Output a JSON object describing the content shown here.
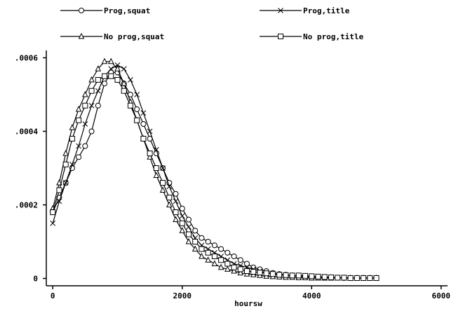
{
  "chart_data": {
    "type": "line",
    "xlabel": "hoursw",
    "ylabel": "",
    "title": "",
    "xlim": [
      -100,
      6100
    ],
    "ylim": [
      -2e-05,
      0.00062
    ],
    "xticks": [
      0,
      2000,
      4000,
      6000
    ],
    "xtick_labels": [
      "0",
      "2000",
      "4000",
      "6000"
    ],
    "yticks": [
      0,
      0.0002,
      0.0004,
      0.0006
    ],
    "ytick_labels": [
      "0",
      ".0002",
      ".0004",
      ".0006"
    ],
    "grid": false,
    "legend_position": "top",
    "series": [
      {
        "name": "Prog,squat",
        "marker": "circle",
        "x": [
          0,
          100,
          200,
          300,
          400,
          500,
          600,
          700,
          800,
          900,
          1000,
          1100,
          1200,
          1300,
          1400,
          1500,
          1600,
          1700,
          1800,
          1900,
          2000,
          2100,
          2200,
          2300,
          2400,
          2500,
          2600,
          2700,
          2800,
          2900,
          3000,
          3100,
          3200,
          3300,
          3400,
          3500,
          3600,
          3700,
          3800,
          3900,
          4000,
          4100,
          4200,
          4300,
          4400,
          4500,
          4600,
          4700,
          4800,
          4900,
          5000
        ],
        "y": [
          0.00018,
          0.00022,
          0.00026,
          0.0003,
          0.00033,
          0.00036,
          0.0004,
          0.00047,
          0.00053,
          0.00056,
          0.00056,
          0.00053,
          0.0005,
          0.00046,
          0.00042,
          0.00038,
          0.00034,
          0.0003,
          0.00026,
          0.00023,
          0.00019,
          0.00016,
          0.00013,
          0.00011,
          0.0001,
          9e-05,
          8e-05,
          7e-05,
          6e-05,
          5e-05,
          4e-05,
          3e-05,
          2.5e-05,
          2e-05,
          1.5e-05,
          1.2e-05,
          1e-05,
          8e-06,
          6e-06,
          5e-06,
          4e-06,
          3e-06,
          3e-06,
          2e-06,
          2e-06,
          1e-06,
          1e-06,
          1e-06,
          1e-06,
          1e-06,
          1e-06
        ]
      },
      {
        "name": "Prog,title",
        "marker": "x",
        "x": [
          0,
          100,
          200,
          300,
          400,
          500,
          600,
          700,
          800,
          900,
          1000,
          1100,
          1200,
          1300,
          1400,
          1500,
          1600,
          1700,
          1800,
          1900,
          2000,
          2100,
          2200,
          2300,
          2400,
          2500,
          2600,
          2700,
          2800,
          2900,
          3000,
          3100,
          3200,
          3300,
          3400,
          3500,
          3600,
          3700,
          3800,
          3900,
          4000,
          4100,
          4200,
          4300,
          4400,
          4500,
          4600,
          4700,
          4800,
          4900,
          5000
        ],
        "y": [
          0.00015,
          0.00021,
          0.00026,
          0.00031,
          0.00036,
          0.00042,
          0.00047,
          0.00051,
          0.00055,
          0.00057,
          0.00058,
          0.00057,
          0.00054,
          0.0005,
          0.00045,
          0.0004,
          0.00035,
          0.0003,
          0.00025,
          0.00021,
          0.00017,
          0.00014,
          0.00011,
          9e-05,
          8e-05,
          7e-05,
          6e-05,
          5e-05,
          4e-05,
          3.5e-05,
          3e-05,
          2.5e-05,
          2e-05,
          1.5e-05,
          1.2e-05,
          1e-05,
          8e-06,
          7e-06,
          6e-06,
          5e-06,
          4e-06,
          3e-06,
          3e-06,
          2e-06,
          2e-06,
          1e-06,
          1e-06,
          1e-06,
          1e-06,
          1e-06,
          1e-06
        ]
      },
      {
        "name": "No prog,squat",
        "marker": "triangle",
        "x": [
          0,
          100,
          200,
          300,
          400,
          500,
          600,
          700,
          800,
          900,
          1000,
          1100,
          1200,
          1300,
          1400,
          1500,
          1600,
          1700,
          1800,
          1900,
          2000,
          2100,
          2200,
          2300,
          2400,
          2500,
          2600,
          2700,
          2800,
          2900,
          3000,
          3100,
          3200,
          3300,
          3400,
          3500,
          3600,
          3700,
          3800,
          3900,
          4000,
          4100,
          4200,
          4300,
          4400,
          4500,
          4600,
          4700,
          4800,
          4900,
          5000
        ],
        "y": [
          0.00019,
          0.00026,
          0.00034,
          0.00041,
          0.00046,
          0.0005,
          0.00054,
          0.00057,
          0.00059,
          0.00059,
          0.00057,
          0.00053,
          0.00048,
          0.00043,
          0.00038,
          0.00033,
          0.00028,
          0.00024,
          0.0002,
          0.00016,
          0.00013,
          0.0001,
          8e-05,
          6e-05,
          5e-05,
          4e-05,
          3e-05,
          2.5e-05,
          2e-05,
          1.5e-05,
          1.2e-05,
          1e-05,
          8e-06,
          6e-06,
          5e-06,
          4e-06,
          3e-06,
          3e-06,
          2e-06,
          2e-06,
          1e-06,
          1e-06,
          1e-06,
          1e-06,
          1e-06,
          1e-06,
          1e-06,
          1e-06,
          1e-06,
          1e-06,
          1e-06
        ]
      },
      {
        "name": "No prog,title",
        "marker": "square",
        "x": [
          0,
          100,
          200,
          300,
          400,
          500,
          600,
          700,
          800,
          900,
          1000,
          1100,
          1200,
          1300,
          1400,
          1500,
          1600,
          1700,
          1800,
          1900,
          2000,
          2100,
          2200,
          2300,
          2400,
          2500,
          2600,
          2700,
          2800,
          2900,
          3000,
          3100,
          3200,
          3300,
          3400,
          3500,
          3600,
          3700,
          3800,
          3900,
          4000,
          4100,
          4200,
          4300,
          4400,
          4500,
          4600,
          4700,
          4800,
          4900,
          5000
        ],
        "y": [
          0.00018,
          0.00024,
          0.00031,
          0.00038,
          0.00043,
          0.00047,
          0.00051,
          0.00054,
          0.00055,
          0.00055,
          0.00054,
          0.00051,
          0.00047,
          0.00043,
          0.00038,
          0.00034,
          0.0003,
          0.00026,
          0.00022,
          0.00018,
          0.00015,
          0.00012,
          0.0001,
          8e-05,
          7e-05,
          6e-05,
          5e-05,
          4e-05,
          3e-05,
          2.5e-05,
          2e-05,
          1.8e-05,
          1.6e-05,
          1.4e-05,
          1.2e-05,
          1e-05,
          9e-06,
          8e-06,
          8e-06,
          7e-06,
          6e-06,
          5e-06,
          4e-06,
          3e-06,
          2e-06,
          2e-06,
          1e-06,
          1e-06,
          1e-06,
          1e-06,
          1e-06
        ]
      }
    ]
  }
}
